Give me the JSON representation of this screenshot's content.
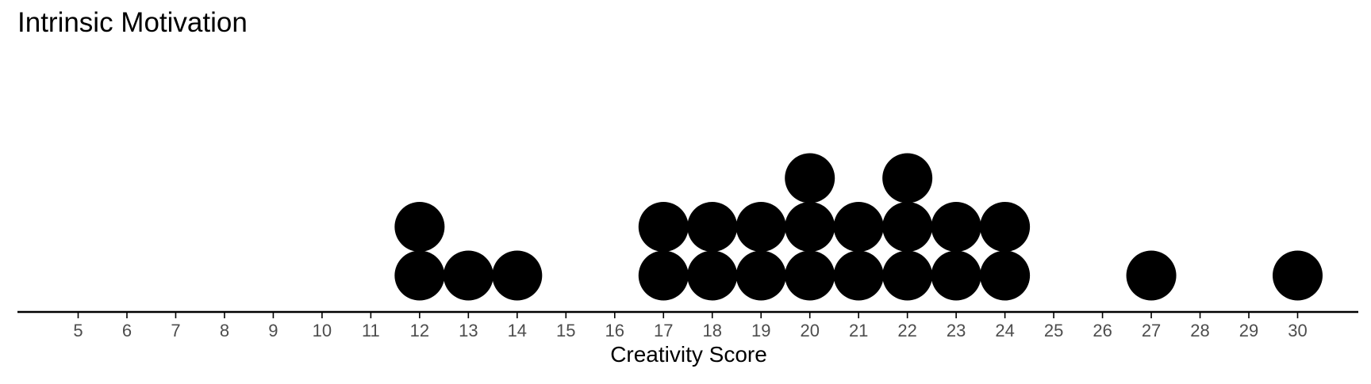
{
  "chart_data": {
    "type": "dotplot",
    "title": "Intrinsic Motivation",
    "xlabel": "Creativity Score",
    "xlim": [
      5,
      30
    ],
    "x_ticks": [
      5,
      6,
      7,
      8,
      9,
      10,
      11,
      12,
      13,
      14,
      15,
      16,
      17,
      18,
      19,
      20,
      21,
      22,
      23,
      24,
      25,
      26,
      27,
      28,
      29,
      30
    ],
    "points": [
      {
        "x": 12,
        "count": 2
      },
      {
        "x": 13,
        "count": 1
      },
      {
        "x": 14,
        "count": 1
      },
      {
        "x": 17,
        "count": 2
      },
      {
        "x": 18,
        "count": 2
      },
      {
        "x": 19,
        "count": 2
      },
      {
        "x": 20,
        "count": 3
      },
      {
        "x": 21,
        "count": 2
      },
      {
        "x": 22,
        "count": 3
      },
      {
        "x": 23,
        "count": 2
      },
      {
        "x": 24,
        "count": 2
      },
      {
        "x": 27,
        "count": 1
      },
      {
        "x": 30,
        "count": 1
      }
    ],
    "grid": false,
    "dot_color": "#000000",
    "axis_color": "#000000"
  }
}
